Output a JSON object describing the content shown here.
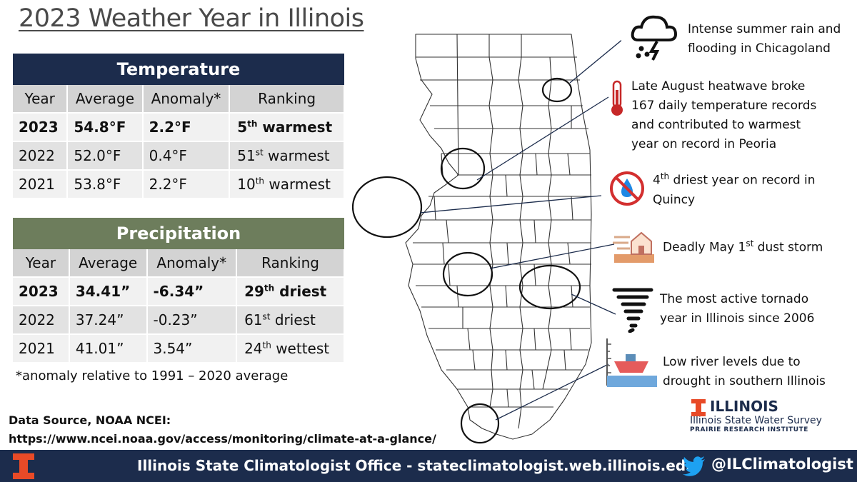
{
  "title": "2023 Weather Year in Illinois",
  "temperature": {
    "heading": "Temperature",
    "columns": [
      "Year",
      "Average",
      "Anomaly*",
      "Ranking"
    ],
    "rows": [
      {
        "year": "2023",
        "average": "54.8°F",
        "anomaly": "2.2°F",
        "rank_num": "5",
        "rank_sup": "th",
        "rank_word": " warmest"
      },
      {
        "year": "2022",
        "average": "52.0°F",
        "anomaly": "0.4°F",
        "rank_num": "51",
        "rank_sup": "st",
        "rank_word": " warmest"
      },
      {
        "year": "2021",
        "average": "53.8°F",
        "anomaly": "2.2°F",
        "rank_num": "10",
        "rank_sup": "th",
        "rank_word": " warmest"
      }
    ]
  },
  "precipitation": {
    "heading": "Precipitation",
    "columns": [
      "Year",
      "Average",
      "Anomaly*",
      "Ranking"
    ],
    "rows": [
      {
        "year": "2023",
        "average": "34.41”",
        "anomaly": "-6.34”",
        "rank_num": "29",
        "rank_sup": "th",
        "rank_word": " driest"
      },
      {
        "year": "2022",
        "average": "37.24”",
        "anomaly": "-0.23”",
        "rank_num": "61",
        "rank_sup": "st",
        "rank_word": " driest"
      },
      {
        "year": "2021",
        "average": "41.01”",
        "anomaly": "3.54”",
        "rank_num": "24",
        "rank_sup": "th",
        "rank_word": " wettest"
      }
    ]
  },
  "note": "*anomaly relative to 1991 – 2020 average",
  "source": {
    "label": "Data Source, NOAA NCEI:",
    "url": "https://www.ncei.noaa.gov/access/monitoring/climate-at-a-glance/"
  },
  "callouts": {
    "rain": {
      "line1": "Intense summer rain and",
      "line2": "flooding in Chicagoland",
      "icon": "storm-cloud-icon"
    },
    "heat": {
      "line1": "Late August heatwave broke",
      "line2": "167 daily temperature records",
      "line3": "and contributed to warmest",
      "line4": "year on record in Peoria",
      "icon": "thermometer-icon"
    },
    "dry": {
      "num": "4",
      "sup": "th",
      "line1": " driest year on record in",
      "line2": "Quincy",
      "icon": "no-water-icon"
    },
    "dust": {
      "pre": "Deadly May 1",
      "sup": "st",
      "post": " dust storm",
      "icon": "dust-storm-icon"
    },
    "tornado": {
      "line1": "The most active tornado",
      "line2": "year in Illinois since 2006",
      "icon": "tornado-icon"
    },
    "river": {
      "line1": "Low river levels due to",
      "line2": "drought in southern Illinois",
      "icon": "ship-icon"
    }
  },
  "isws": {
    "illinois": "ILLINOIS",
    "survey": "Illinois State Water Survey",
    "institute": "PRAIRIE RESEARCH INSTITUTE"
  },
  "footer": {
    "text": "Illinois State Climatologist Office - stateclimatologist.web.illinois.edu",
    "handle": "@ILClimatologist"
  },
  "colors": {
    "navy": "#1c2c4c",
    "olive": "#6d7d5c",
    "illinois_orange": "#e84a27",
    "twitter_blue": "#1da1f2"
  }
}
